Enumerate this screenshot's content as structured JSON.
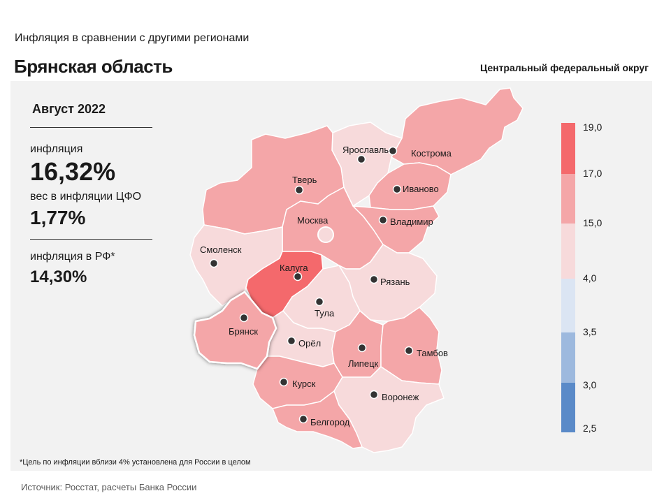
{
  "header": {
    "subtitle": "Инфляция  в сравнении  с другими  регионами",
    "title": "Брянская область",
    "district": "Центральный федеральный округ"
  },
  "stats": {
    "period": "Август 2022",
    "inflation_label": "инфляция",
    "inflation_value": "16,32%",
    "weight_label": "вес в инфляции  ЦФО",
    "weight_value": "1,77%",
    "rf_label": "инфляция  в РФ*",
    "rf_value": "14,30%"
  },
  "footnote": "*Цель по инфляции вблизи 4% установлена для России в целом",
  "source": "Источник: Росстат, расчеты Банка России",
  "colors": {
    "bin_17_19": "#f4696c",
    "bin_15_17": "#f4a6a8",
    "bin_4_15": "#f7dadb",
    "bin_35_4": "#dbe5f3",
    "bin_3_35": "#9db9de",
    "bin_25_3": "#5a8ac8"
  },
  "legend": {
    "ticks": [
      "19,0",
      "17,0",
      "15,0",
      "4,0",
      "3,5",
      "3,0",
      "2,5"
    ]
  },
  "regions": [
    {
      "name": "Ярославль",
      "bin": "4-15"
    },
    {
      "name": "Кострома",
      "bin": "15-17"
    },
    {
      "name": "Тверь",
      "bin": "15-17"
    },
    {
      "name": "Иваново",
      "bin": "15-17"
    },
    {
      "name": "Москва",
      "bin": "15-17"
    },
    {
      "name": "Владимир",
      "bin": "15-17"
    },
    {
      "name": "Смоленск",
      "bin": "4-15"
    },
    {
      "name": "Калуга",
      "bin": "17-19"
    },
    {
      "name": "Рязань",
      "bin": "4-15"
    },
    {
      "name": "Тула",
      "bin": "4-15"
    },
    {
      "name": "Брянск",
      "bin": "15-17",
      "highlighted": true
    },
    {
      "name": "Орёл",
      "bin": "4-15"
    },
    {
      "name": "Липецк",
      "bin": "15-17"
    },
    {
      "name": "Тамбов",
      "bin": "15-17"
    },
    {
      "name": "Курск",
      "bin": "15-17"
    },
    {
      "name": "Воронеж",
      "bin": "4-15"
    },
    {
      "name": "Белгород",
      "bin": "15-17"
    }
  ]
}
